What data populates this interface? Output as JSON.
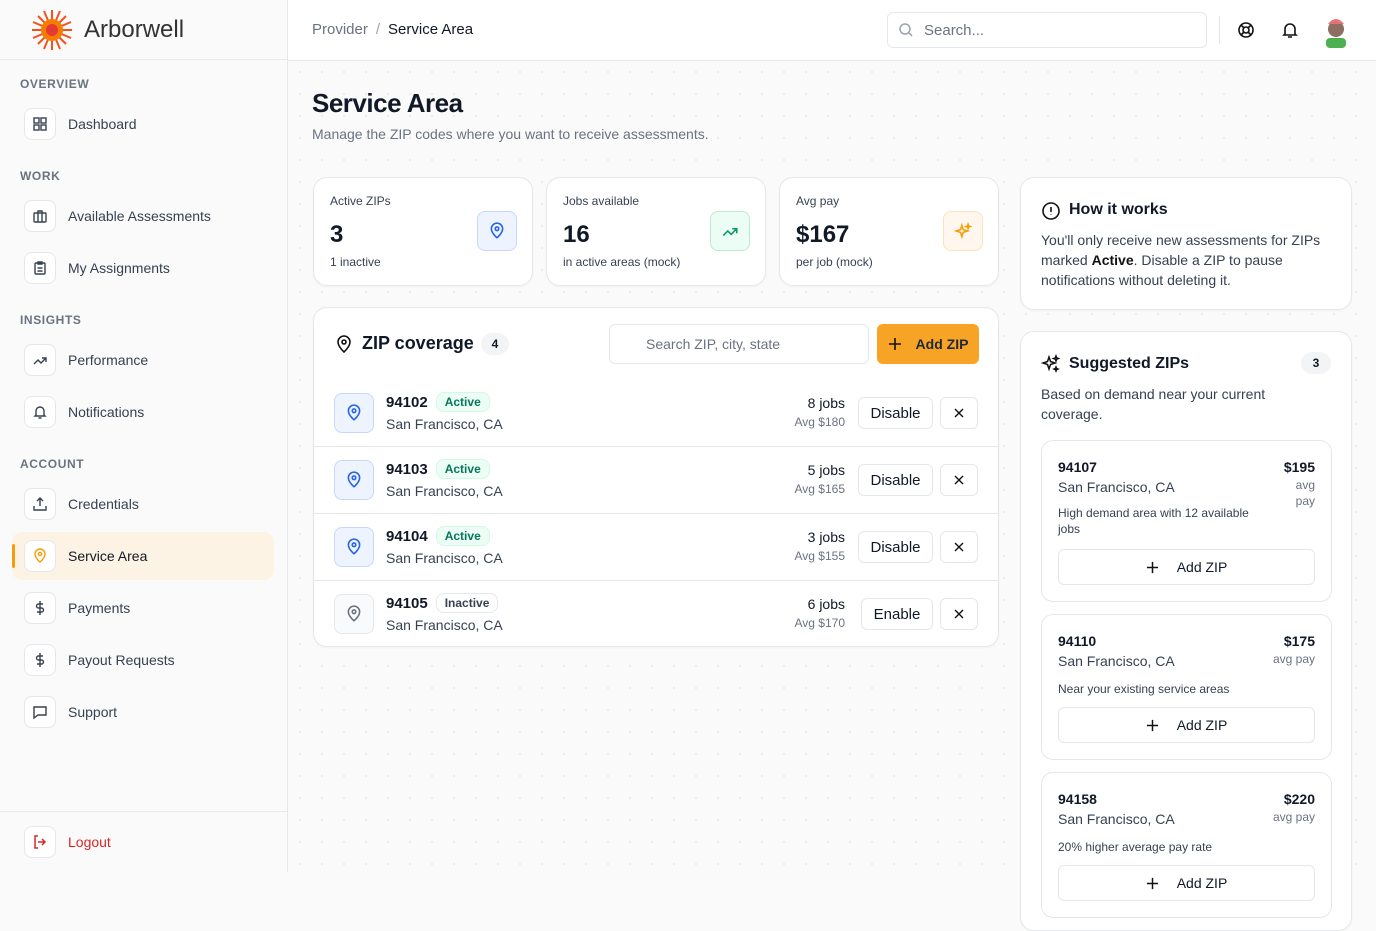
{
  "brand": "Arborwell",
  "nav": [
    {
      "section": "OVERVIEW",
      "items": [
        "Dashboard"
      ]
    },
    {
      "section": "WORK",
      "items": [
        "Available Assessments",
        "My Assignments"
      ]
    },
    {
      "section": "INSIGHTS",
      "items": [
        "Performance",
        "Notifications"
      ]
    },
    {
      "section": "ACCOUNT",
      "items": [
        "Credentials",
        "Service Area",
        "Payments",
        "Payout Requests",
        "Support"
      ]
    }
  ],
  "active_nav": "Service Area",
  "logout": "Logout",
  "breadcrumb": [
    "Provider",
    "Service Area"
  ],
  "search_placeholder": "Search...",
  "page": {
    "title": "Service Area",
    "subtitle": "Manage the ZIP codes where you want to receive assessments."
  },
  "stats": [
    {
      "label": "Active ZIPs",
      "value": "3",
      "note": "1 inactive"
    },
    {
      "label": "Jobs available",
      "value": "16",
      "note": "in active areas (mock)"
    },
    {
      "label": "Avg pay",
      "value": "$167",
      "note": "per job (mock)"
    }
  ],
  "coverage": {
    "title": "ZIP coverage",
    "count": "4",
    "search_placeholder": "Search ZIP, city, state",
    "add": "Add ZIP",
    "rows": [
      {
        "zip": "94102",
        "status": "Active",
        "city": "San Francisco, CA",
        "jobs": "8 jobs",
        "avg": "Avg $180",
        "action": "Disable"
      },
      {
        "zip": "94103",
        "status": "Active",
        "city": "San Francisco, CA",
        "jobs": "5 jobs",
        "avg": "Avg $165",
        "action": "Disable"
      },
      {
        "zip": "94104",
        "status": "Active",
        "city": "San Francisco, CA",
        "jobs": "3 jobs",
        "avg": "Avg $155",
        "action": "Disable"
      },
      {
        "zip": "94105",
        "status": "Inactive",
        "city": "San Francisco, CA",
        "jobs": "6 jobs",
        "avg": "Avg $170",
        "action": "Enable"
      }
    ]
  },
  "how": {
    "title": "How it works",
    "text_before": "You'll only receive new assessments for ZIPs marked ",
    "bold": "Active",
    "text_after": ". Disable a ZIP to pause notifications without deleting it."
  },
  "suggested": {
    "title": "Suggested ZIPs",
    "count": "3",
    "subtitle": "Based on demand near your current coverage.",
    "items": [
      {
        "zip": "94107",
        "city": "San Francisco, CA",
        "pay": "$195",
        "pay_note": "avg pay",
        "reason": "High demand area with 12 available jobs",
        "add": "Add ZIP"
      },
      {
        "zip": "94110",
        "city": "San Francisco, CA",
        "pay": "$175",
        "pay_note": "avg pay",
        "reason": "Near your existing service areas",
        "add": "Add ZIP"
      },
      {
        "zip": "94158",
        "city": "San Francisco, CA",
        "pay": "$220",
        "pay_note": "avg pay",
        "reason": "20% higher average pay rate",
        "add": "Add ZIP"
      }
    ]
  }
}
